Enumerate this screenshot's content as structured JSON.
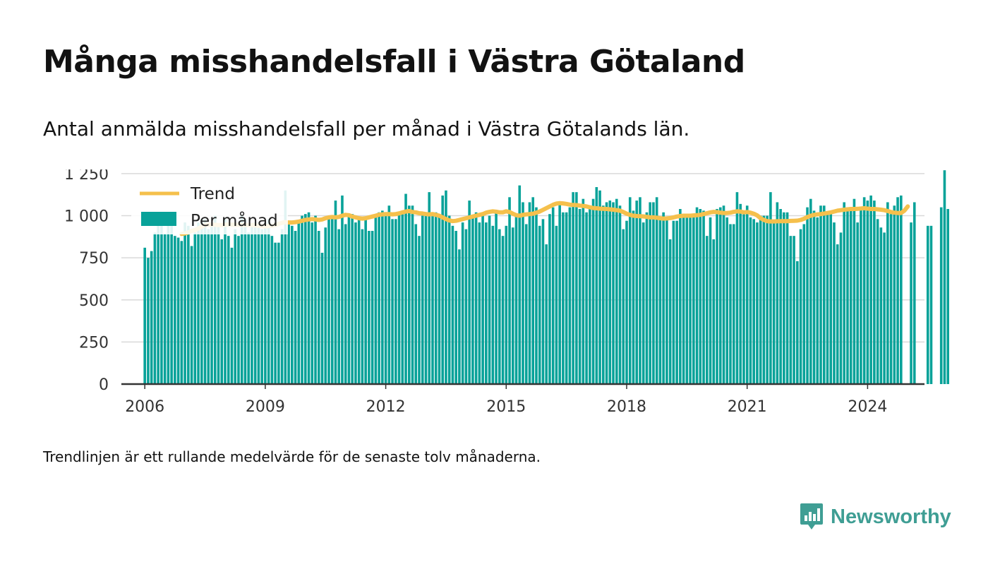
{
  "title": "Många misshandelsfall i Västra Götaland",
  "subtitle": "Antal anmälda misshandelsfall per månad i Västra Götalands län.",
  "footnote": "Trendlinjen är ett rullande medelvärde för de senaste tolv månaderna.",
  "brand": "Newsworthy",
  "colors": {
    "bars": "#08a299",
    "trend": "#f5c04c",
    "grid": "#d9d9d9",
    "axis": "#333333",
    "brand": "#3f9e94"
  },
  "chart_data": {
    "type": "bar",
    "x_start": "2006-01",
    "x_step": "month",
    "xlim": [
      "2005-06",
      "2025-06"
    ],
    "ylim": [
      0,
      1300
    ],
    "y_ticks": [
      0,
      250,
      500,
      750,
      1000,
      1250
    ],
    "y_tick_labels": [
      "0",
      "250",
      "500",
      "750",
      "1 000",
      "1 250"
    ],
    "x_tick_labels": [
      "2006",
      "2009",
      "2012",
      "2015",
      "2018",
      "2021",
      "2024"
    ],
    "grid": true,
    "legend_position": "top-left",
    "series": [
      {
        "name": "Per månad",
        "type": "bar",
        "values": [
          810,
          750,
          790,
          900,
          950,
          940,
          890,
          940,
          980,
          880,
          870,
          850,
          960,
          940,
          820,
          900,
          960,
          980,
          980,
          920,
          960,
          1000,
          940,
          860,
          980,
          880,
          810,
          920,
          880,
          1000,
          980,
          900,
          940,
          960,
          960,
          920,
          960,
          980,
          880,
          840,
          840,
          920,
          1150,
          960,
          940,
          910,
          960,
          1000,
          1010,
          1020,
          960,
          1000,
          910,
          780,
          930,
          1000,
          1000,
          1090,
          920,
          1120,
          950,
          1010,
          1010,
          960,
          980,
          920,
          980,
          910,
          910,
          1000,
          1020,
          1030,
          1020,
          1060,
          980,
          980,
          1010,
          1010,
          1130,
          1060,
          1060,
          950,
          880,
          1000,
          1020,
          1140,
          1000,
          1020,
          1010,
          1120,
          1150,
          1000,
          940,
          910,
          800,
          960,
          920,
          1090,
          1000,
          1020,
          960,
          1000,
          960,
          1000,
          940,
          1030,
          920,
          880,
          940,
          1110,
          930,
          1000,
          1180,
          1080,
          950,
          1080,
          1110,
          1050,
          940,
          980,
          830,
          1010,
          1050,
          940,
          1070,
          1020,
          1020,
          1050,
          1140,
          1140,
          1040,
          1100,
          1020,
          1060,
          1100,
          1170,
          1150,
          1060,
          1080,
          1090,
          1080,
          1100,
          1060,
          920,
          970,
          1110,
          1030,
          1090,
          1110,
          960,
          1020,
          1080,
          1080,
          1110,
          990,
          1020,
          990,
          860,
          970,
          970,
          1040,
          1010,
          1010,
          1000,
          1000,
          1050,
          1040,
          1030,
          880,
          990,
          860,
          1040,
          1050,
          1060,
          990,
          950,
          950,
          1140,
          1070,
          1010,
          1060,
          990,
          980,
          960,
          1000,
          1000,
          1000,
          1140,
          960,
          1080,
          1040,
          1020,
          1020,
          880,
          880,
          730,
          920,
          950,
          1050,
          1100,
          1030,
          990,
          1060,
          1060,
          1010,
          1010,
          960,
          830,
          900,
          1080,
          1050,
          1050,
          1100,
          960,
          1040,
          1110,
          1090,
          1120,
          1090,
          980,
          930,
          900,
          1080,
          1010,
          1060,
          1110,
          1120,
          0,
          0,
          960,
          1080,
          0,
          0,
          0,
          940,
          940,
          0,
          0,
          1050,
          1270,
          1040
        ]
      },
      {
        "name": "Trend",
        "type": "line",
        "start": "2006-12",
        "values": [
          892,
          895,
          900,
          910,
          915,
          925,
          935,
          945,
          947,
          947,
          946,
          944,
          944,
          946,
          948,
          947,
          946,
          946,
          945,
          945,
          944,
          945,
          943,
          940,
          938,
          937,
          938,
          940,
          945,
          952,
          958,
          962,
          960,
          960,
          962,
          965,
          970,
          975,
          978,
          980,
          978,
          975,
          978,
          985,
          990,
          992,
          990,
          993,
          1000,
          1005,
          1003,
          995,
          990,
          985,
          983,
          985,
          990,
          995,
          1000,
          1006,
          1008,
          1010,
          1010,
          1008,
          1010,
          1014,
          1020,
          1025,
          1028,
          1022,
          1020,
          1015,
          1013,
          1010,
          1008,
          1010,
          1005,
          1000,
          990,
          980,
          972,
          968,
          970,
          975,
          980,
          985,
          990,
          995,
          1000,
          1005,
          1010,
          1018,
          1023,
          1026,
          1024,
          1020,
          1020,
          1026,
          1022,
          1012,
          1003,
          1000,
          1005,
          1008,
          1010,
          1012,
          1018,
          1025,
          1035,
          1045,
          1055,
          1065,
          1072,
          1075,
          1073,
          1070,
          1066,
          1064,
          1063,
          1060,
          1058,
          1055,
          1050,
          1046,
          1044,
          1042,
          1041,
          1040,
          1038,
          1036,
          1033,
          1030,
          1022,
          1012,
          1005,
          1000,
          998,
          997,
          996,
          993,
          990,
          990,
          988,
          985,
          983,
          984,
          986,
          990,
          995,
          998,
          1000,
          1000,
          1000,
          1002,
          1003,
          1005,
          1010,
          1015,
          1020,
          1023,
          1021,
          1018,
          1016,
          1016,
          1018,
          1023,
          1026,
          1025,
          1020,
          1022,
          1018,
          1012,
          1002,
          985,
          975,
          968,
          966,
          966,
          967,
          968,
          968,
          968,
          969,
          970,
          971,
          975,
          982,
          992,
          1000,
          1005,
          1008,
          1010,
          1013,
          1016,
          1020,
          1025,
          1030,
          1033,
          1036,
          1038,
          1040,
          1040,
          1041,
          1043,
          1045,
          1042,
          1040,
          1040,
          1038,
          1036,
          1033,
          1028,
          1022,
          1018,
          1016,
          1016,
          1030,
          1055
        ]
      }
    ]
  }
}
